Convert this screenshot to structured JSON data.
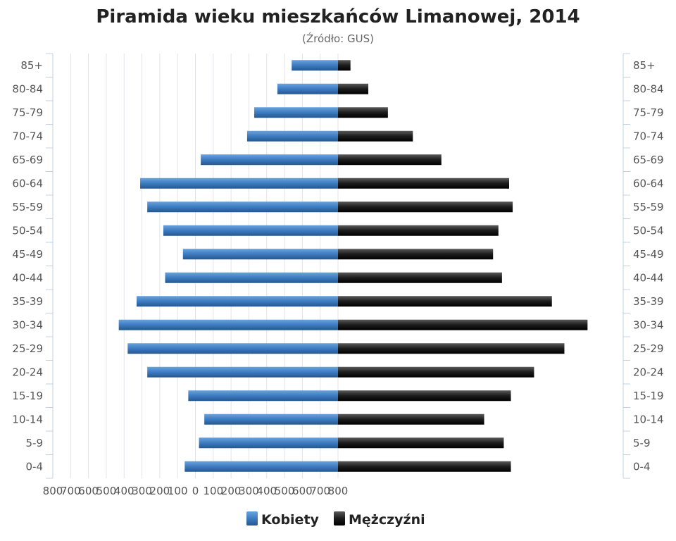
{
  "chart_data": {
    "type": "bar",
    "orientation": "horizontal-population-pyramid",
    "title": "Piramida wieku mieszkańców Limanowej, 2014",
    "subtitle": "(Źródło: GUS)",
    "categories": [
      "85+",
      "80-84",
      "75-79",
      "70-74",
      "65-69",
      "60-64",
      "55-59",
      "50-54",
      "45-49",
      "40-44",
      "35-39",
      "30-34",
      "25-29",
      "20-24",
      "15-19",
      "10-14",
      "5-9",
      "0-4"
    ],
    "series": [
      {
        "name": "Kobiety",
        "color": "#3f7fc4",
        "side": "left",
        "values": [
          130,
          170,
          235,
          255,
          385,
          555,
          535,
          490,
          435,
          485,
          565,
          615,
          590,
          535,
          420,
          375,
          390,
          430
        ]
      },
      {
        "name": "Mężczyźni",
        "color": "#1c1c1c",
        "side": "right",
        "values": [
          35,
          85,
          140,
          210,
          290,
          480,
          490,
          450,
          435,
          460,
          600,
          700,
          635,
          550,
          485,
          410,
          465,
          485
        ]
      }
    ],
    "xlim": [
      -800,
      800
    ],
    "x_ticks": [
      "800",
      "700",
      "600",
      "500",
      "400",
      "300",
      "200",
      "100",
      "0",
      "100",
      "200",
      "300",
      "400",
      "500",
      "600",
      "700",
      "800"
    ],
    "grid": true,
    "legend_position": "bottom-center"
  }
}
